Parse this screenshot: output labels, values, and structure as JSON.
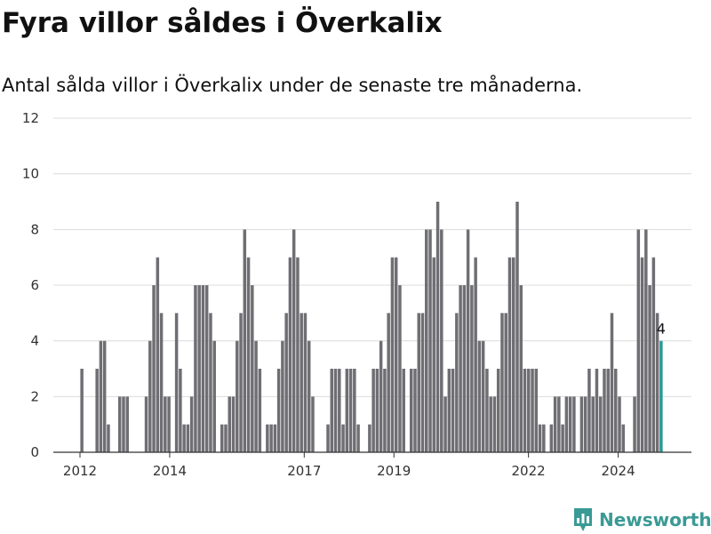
{
  "title": "Fyra villor såldes i Överkalix",
  "subtitle": "Antal sålda villor i Överkalix under de senaste tre månaderna.",
  "brand": {
    "name": "Newsworthy",
    "icon": "bar-chart-logo-icon",
    "color": "#3a9a95"
  },
  "chart_data": {
    "type": "bar",
    "x_start": "2012-01",
    "x_end": "2025-01",
    "ylim": [
      0,
      12
    ],
    "yticks": [
      0,
      2,
      4,
      6,
      8,
      10,
      12
    ],
    "xticks": [
      {
        "label": "2012",
        "date": "2012-01"
      },
      {
        "label": "2014",
        "date": "2014-01"
      },
      {
        "label": "2017",
        "date": "2017-01"
      },
      {
        "label": "2019",
        "date": "2019-01"
      },
      {
        "label": "2022",
        "date": "2022-01"
      },
      {
        "label": "2024",
        "date": "2024-01"
      }
    ],
    "grid": true,
    "bar_color": "#6f6e73",
    "highlight_color": "#2a9a93",
    "highlight_label": "4",
    "values": [
      3,
      0,
      0,
      0,
      3,
      4,
      4,
      1,
      0,
      0,
      2,
      2,
      2,
      0,
      0,
      0,
      0,
      2,
      4,
      6,
      7,
      5,
      2,
      2,
      0,
      5,
      3,
      1,
      1,
      2,
      6,
      6,
      6,
      6,
      5,
      4,
      0,
      1,
      1,
      2,
      2,
      4,
      5,
      8,
      7,
      6,
      4,
      3,
      0,
      1,
      1,
      1,
      3,
      4,
      5,
      7,
      8,
      7,
      5,
      5,
      4,
      2,
      0,
      0,
      0,
      1,
      3,
      3,
      3,
      1,
      3,
      3,
      3,
      1,
      0,
      0,
      1,
      3,
      3,
      4,
      3,
      5,
      7,
      7,
      6,
      3,
      0,
      3,
      3,
      5,
      5,
      8,
      8,
      7,
      9,
      8,
      2,
      3,
      3,
      5,
      6,
      6,
      8,
      6,
      7,
      4,
      4,
      3,
      2,
      2,
      3,
      5,
      5,
      7,
      7,
      9,
      6,
      3,
      3,
      3,
      3,
      1,
      1,
      0,
      1,
      2,
      2,
      1,
      2,
      2,
      2,
      0,
      2,
      2,
      3,
      2,
      3,
      2,
      3,
      3,
      5,
      3,
      2,
      1,
      0,
      0,
      2,
      8,
      7,
      8,
      6,
      7,
      5,
      4
    ]
  }
}
